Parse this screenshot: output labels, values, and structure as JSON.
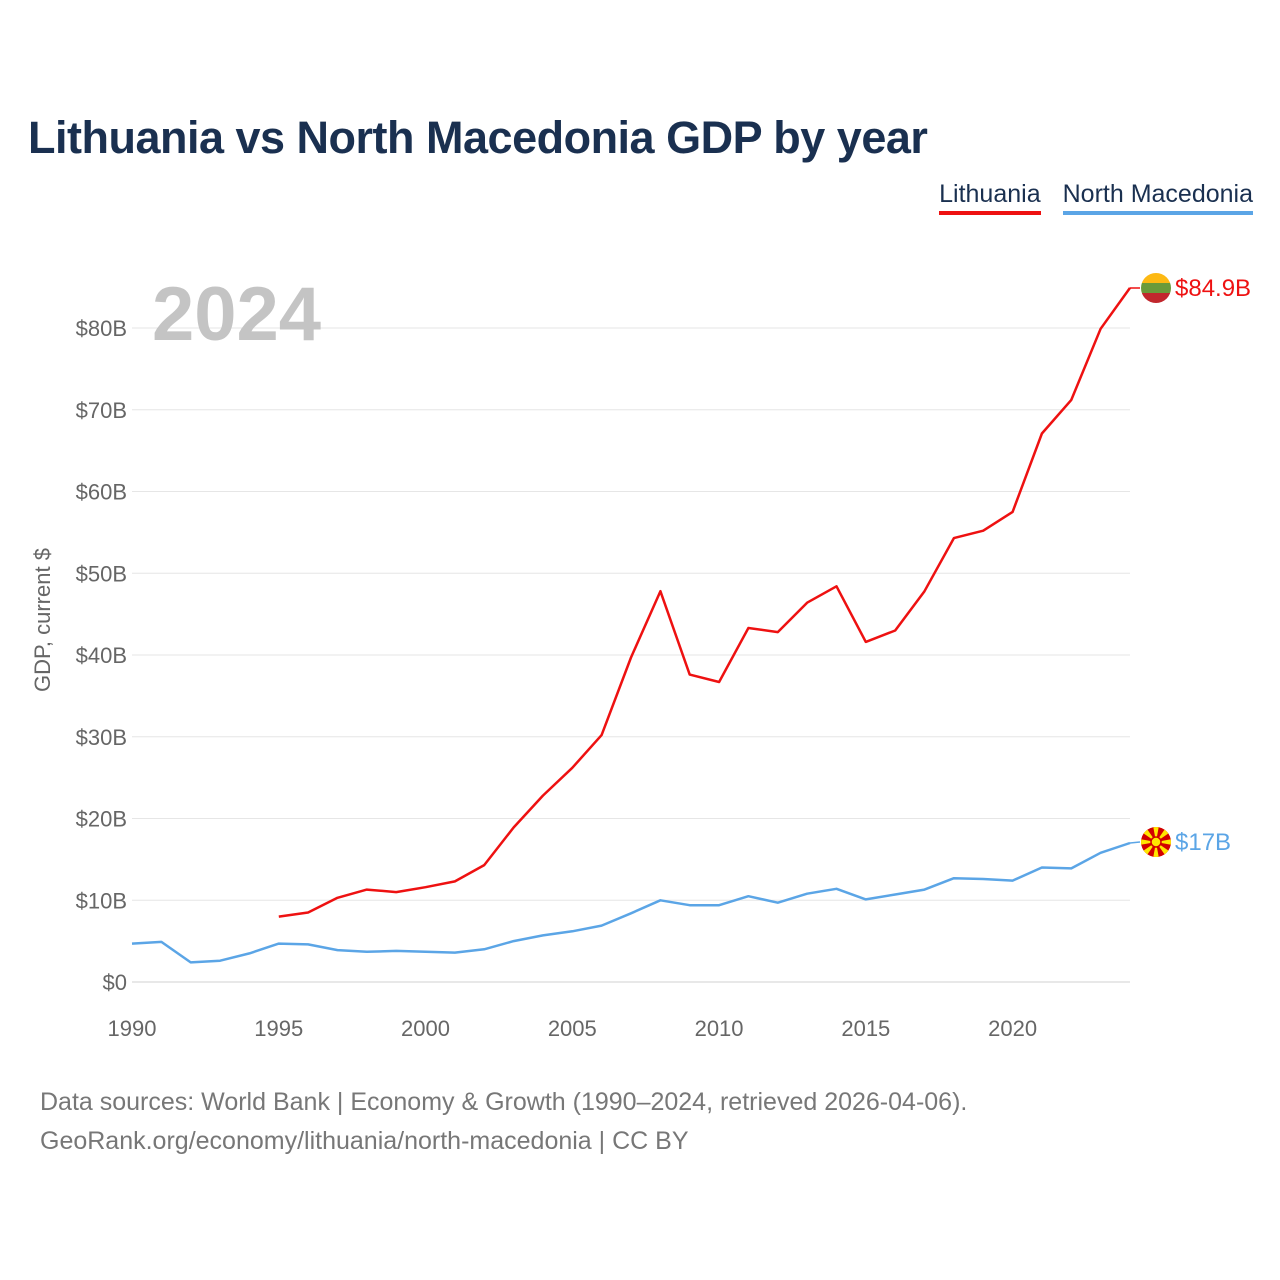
{
  "title": "Lithuania vs North Macedonia GDP by year",
  "legend": [
    {
      "name": "Lithuania",
      "color": "#ee1111"
    },
    {
      "name": "North Macedonia",
      "color": "#5ba5e6"
    }
  ],
  "year_overlay": "2024",
  "footer": {
    "line1": "Data sources: World Bank | Economy & Growth (1990–2024, retrieved 2026-04-06).",
    "line2": "GeoRank.org/economy/lithuania/north-macedonia | CC BY"
  },
  "chart_data": {
    "type": "line",
    "title": "Lithuania vs North Macedonia GDP by year",
    "xlabel": "",
    "ylabel": "GDP, current $",
    "xlim": [
      1990,
      2024
    ],
    "ylim": [
      0,
      85
    ],
    "grid": true,
    "legend_position": "top-right",
    "x_ticks": [
      1990,
      1995,
      2000,
      2005,
      2010,
      2015,
      2020
    ],
    "y_ticks": [
      0,
      10,
      20,
      30,
      40,
      50,
      60,
      70,
      80
    ],
    "y_tick_labels": [
      "$0",
      "$10B",
      "$20B",
      "$30B",
      "$40B",
      "$50B",
      "$60B",
      "$70B",
      "$80B"
    ],
    "series": [
      {
        "name": "Lithuania",
        "color": "#ee1111",
        "end_label": "$84.9B",
        "flag": "lithuania-flag-icon",
        "x": [
          1995,
          1996,
          1997,
          1998,
          1999,
          2000,
          2001,
          2002,
          2003,
          2004,
          2005,
          2006,
          2007,
          2008,
          2009,
          2010,
          2011,
          2012,
          2013,
          2014,
          2015,
          2016,
          2017,
          2018,
          2019,
          2020,
          2021,
          2022,
          2023,
          2024
        ],
        "values": [
          8.0,
          8.5,
          10.3,
          11.3,
          11.0,
          11.6,
          12.3,
          14.3,
          18.9,
          22.8,
          26.2,
          30.2,
          39.7,
          47.8,
          37.6,
          36.7,
          43.3,
          42.8,
          46.4,
          48.4,
          41.6,
          43.0,
          47.8,
          54.3,
          55.2,
          57.5,
          67.1,
          71.2,
          79.9,
          84.9
        ]
      },
      {
        "name": "North Macedonia",
        "color": "#5ba5e6",
        "end_label": "$17B",
        "flag": "north-macedonia-flag-icon",
        "x": [
          1990,
          1991,
          1992,
          1993,
          1994,
          1995,
          1996,
          1997,
          1998,
          1999,
          2000,
          2001,
          2002,
          2003,
          2004,
          2005,
          2006,
          2007,
          2008,
          2009,
          2010,
          2011,
          2012,
          2013,
          2014,
          2015,
          2016,
          2017,
          2018,
          2019,
          2020,
          2021,
          2022,
          2023,
          2024
        ],
        "values": [
          4.7,
          4.9,
          2.4,
          2.6,
          3.5,
          4.7,
          4.6,
          3.9,
          3.7,
          3.8,
          3.7,
          3.6,
          4.0,
          5.0,
          5.7,
          6.2,
          6.9,
          8.4,
          10.0,
          9.4,
          9.4,
          10.5,
          9.7,
          10.8,
          11.4,
          10.1,
          10.7,
          11.3,
          12.7,
          12.6,
          12.4,
          14.0,
          13.9,
          15.8,
          17.0
        ]
      }
    ]
  }
}
